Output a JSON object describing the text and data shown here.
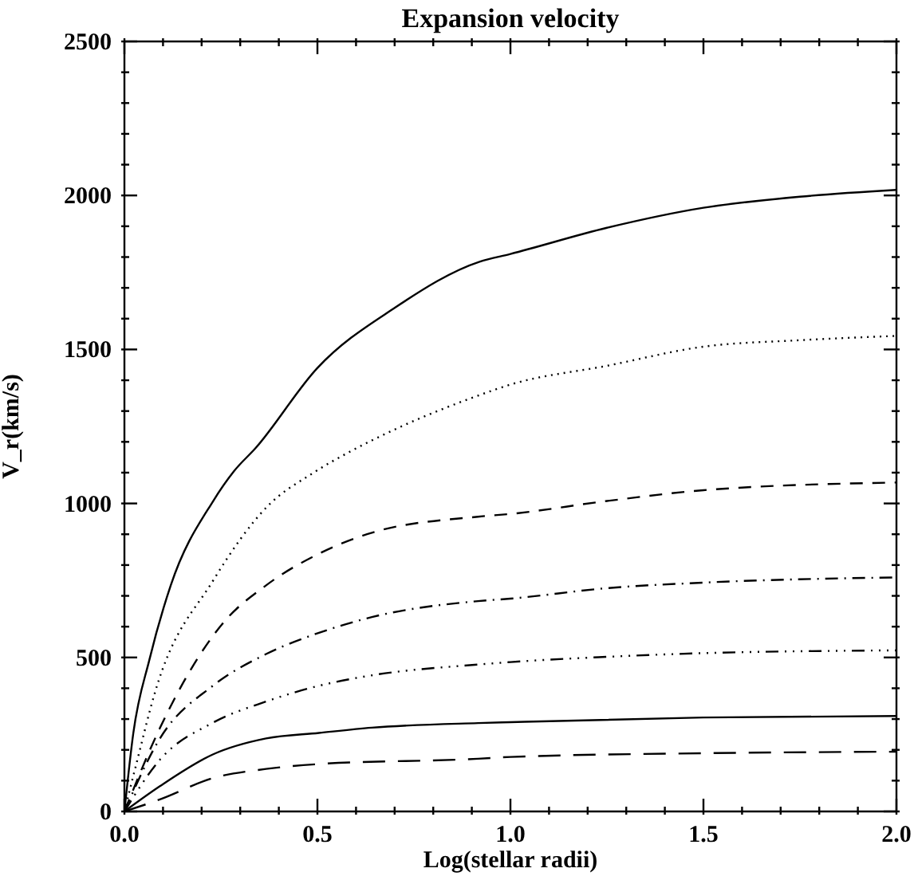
{
  "chart_data": {
    "type": "line",
    "title": "Expansion velocity",
    "xlabel": "Log(stellar radii)",
    "ylabel": "V_r(km/s)",
    "xlim": [
      0,
      2
    ],
    "ylim": [
      0,
      2500
    ],
    "xticks": [
      {
        "value": 0,
        "label": "0.0"
      },
      {
        "value": 0.1,
        "label": null
      },
      {
        "value": 0.2,
        "label": null
      },
      {
        "value": 0.3,
        "label": null
      },
      {
        "value": 0.4,
        "label": null
      },
      {
        "value": 0.5,
        "label": "0.5"
      },
      {
        "value": 0.6,
        "label": null
      },
      {
        "value": 0.7,
        "label": null
      },
      {
        "value": 0.8,
        "label": null
      },
      {
        "value": 0.9,
        "label": null
      },
      {
        "value": 1,
        "label": "1.0"
      },
      {
        "value": 1.1,
        "label": null
      },
      {
        "value": 1.2,
        "label": null
      },
      {
        "value": 1.3,
        "label": null
      },
      {
        "value": 1.4,
        "label": null
      },
      {
        "value": 1.5,
        "label": "1.5"
      },
      {
        "value": 1.6,
        "label": null
      },
      {
        "value": 1.7,
        "label": null
      },
      {
        "value": 1.8,
        "label": null
      },
      {
        "value": 1.9,
        "label": null
      },
      {
        "value": 2,
        "label": "2.0"
      }
    ],
    "yticks": [
      0,
      {
        "value": 100,
        "label": null
      },
      {
        "value": 200,
        "label": null
      },
      {
        "value": 300,
        "label": null
      },
      {
        "value": 400,
        "label": null
      },
      500,
      {
        "value": 600,
        "label": null
      },
      {
        "value": 700,
        "label": null
      },
      {
        "value": 800,
        "label": null
      },
      {
        "value": 900,
        "label": null
      },
      1000,
      {
        "value": 1100,
        "label": null
      },
      {
        "value": 1200,
        "label": null
      },
      {
        "value": 1300,
        "label": null
      },
      {
        "value": 1400,
        "label": null
      },
      1500,
      {
        "value": 1600,
        "label": null
      },
      {
        "value": 1700,
        "label": null
      },
      {
        "value": 1800,
        "label": null
      },
      {
        "value": 1900,
        "label": null
      },
      2000,
      {
        "value": 2100,
        "label": null
      },
      {
        "value": 2200,
        "label": null
      },
      {
        "value": 2300,
        "label": null
      },
      {
        "value": 2400,
        "label": null
      },
      2500
    ],
    "marker": "none",
    "series": [
      {
        "color": "#000000",
        "line_style": "solid",
        "x": [
          0,
          0.023,
          0.065,
          0.12,
          0.23,
          0.284,
          0.34,
          0.5,
          0.7,
          0.92,
          1.0,
          1.25,
          1.5,
          1.75,
          2.0
        ],
        "values": [
          0,
          254,
          494,
          734,
          1008,
          1105,
          1180,
          1440,
          1635,
          1785,
          1810,
          1895,
          1960,
          1996,
          2018
        ]
      },
      {
        "color": "#000000",
        "line_style": "dotted",
        "x": [
          0,
          0.03,
          0.08,
          0.23,
          0.37,
          0.49,
          0.587,
          0.7,
          0.916,
          1.0,
          1.25,
          1.5,
          1.75,
          2.0
        ],
        "values": [
          0,
          150,
          390,
          750,
          990,
          1100,
          1170,
          1240,
          1350,
          1386,
          1447,
          1509,
          1530,
          1544
        ]
      },
      {
        "color": "#000000",
        "line_style": "dashed",
        "x": [
          0,
          0.092,
          0.257,
          0.367,
          0.504,
          0.641,
          0.916,
          1.0,
          1.25,
          1.5,
          2.0
        ],
        "values": [
          0,
          271,
          614,
          734,
          837,
          905,
          957,
          966,
          1008,
          1043,
          1068
        ]
      },
      {
        "color": "#000000",
        "line_style": "dashdot",
        "x": [
          0,
          0.092,
          0.229,
          0.367,
          0.504,
          0.641,
          0.916,
          1.0,
          1.25,
          1.5,
          2.0
        ],
        "values": [
          0,
          237,
          408,
          511,
          580,
          631,
          683,
          691,
          725,
          743,
          760
        ]
      },
      {
        "color": "#000000",
        "line_style": "dashdotdotdot",
        "x": [
          0,
          0.092,
          0.229,
          0.367,
          0.504,
          0.641,
          0.916,
          1.0,
          1.25,
          1.5,
          2.0
        ],
        "values": [
          0,
          168,
          288,
          357,
          408,
          442,
          477,
          485,
          502,
          514,
          523
        ]
      },
      {
        "color": "#000000",
        "line_style": "solid",
        "x": [
          0,
          0.092,
          0.229,
          0.367,
          0.504,
          0.641,
          0.916,
          1.0,
          1.5,
          2.0
        ],
        "values": [
          0,
          82,
          185,
          237,
          255,
          272,
          287,
          290,
          305,
          310
        ]
      },
      {
        "color": "#000000",
        "line_style": "longdash",
        "x": [
          0,
          0.092,
          0.229,
          0.367,
          0.504,
          0.916,
          1.0,
          1.5,
          2.0
        ],
        "values": [
          0,
          39,
          108,
          138,
          154,
          171,
          177,
          189,
          194
        ]
      }
    ]
  }
}
